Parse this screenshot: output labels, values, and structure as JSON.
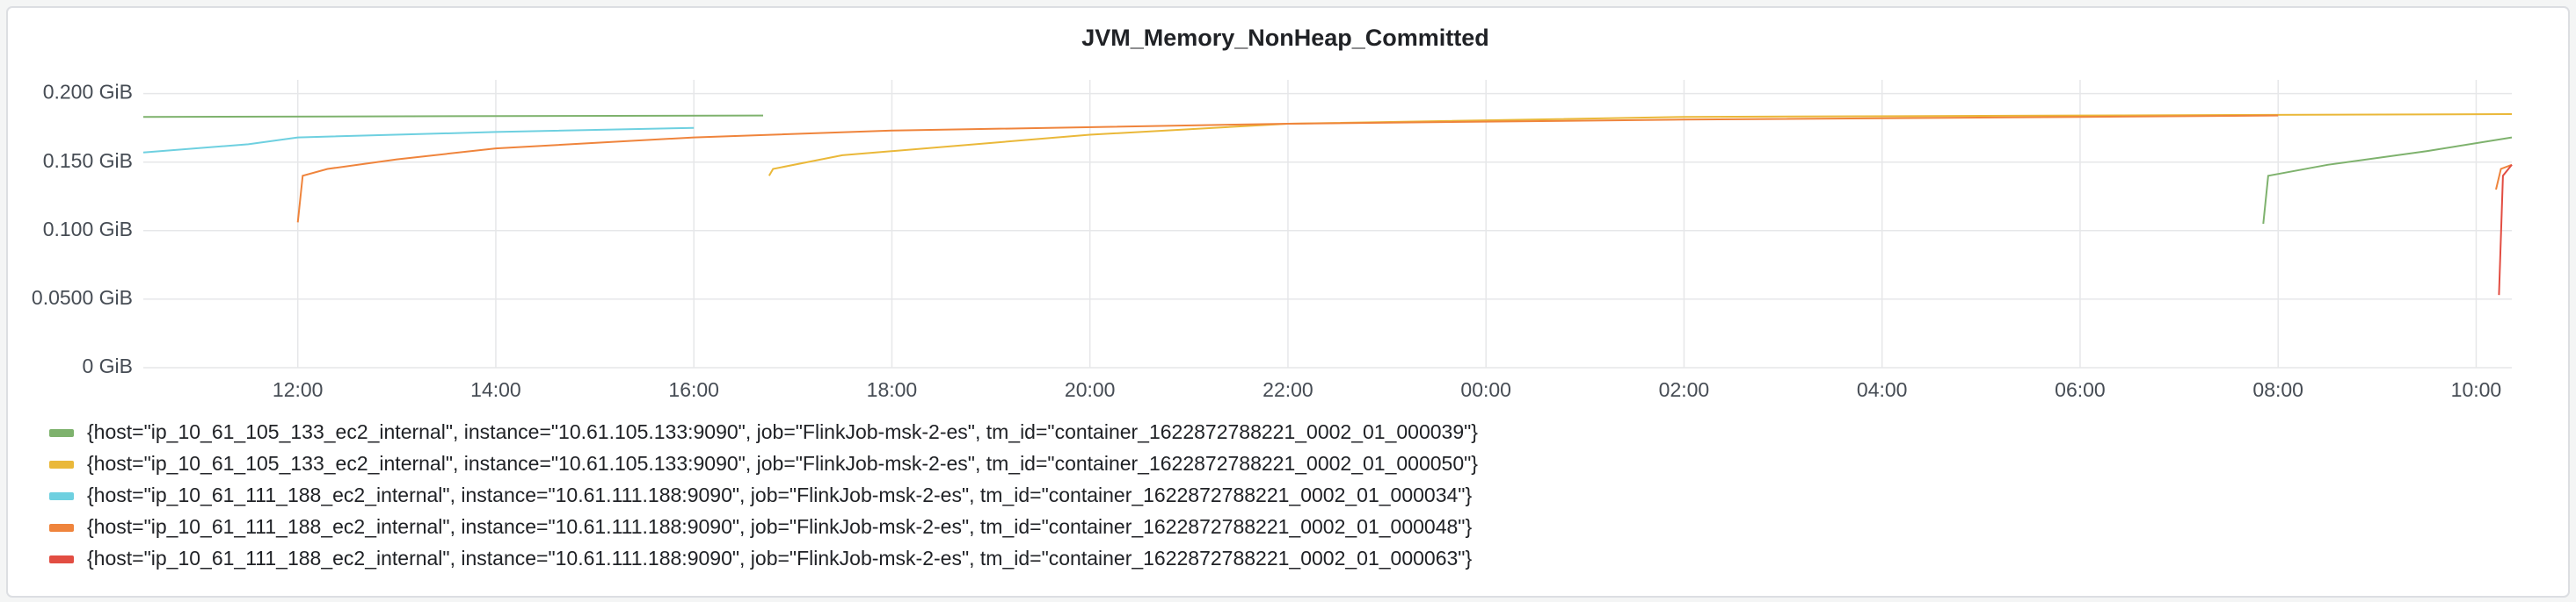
{
  "chart_data": {
    "type": "line",
    "title": "JVM_Memory_NonHeap_Committed",
    "xlim": [
      10.44,
      34.36
    ],
    "xticks": [
      {
        "value": 12,
        "label": "12:00"
      },
      {
        "value": 14,
        "label": "14:00"
      },
      {
        "value": 16,
        "label": "16:00"
      },
      {
        "value": 18,
        "label": "18:00"
      },
      {
        "value": 20,
        "label": "20:00"
      },
      {
        "value": 22,
        "label": "22:00"
      },
      {
        "value": 24,
        "label": "00:00"
      },
      {
        "value": 26,
        "label": "02:00"
      },
      {
        "value": 28,
        "label": "04:00"
      },
      {
        "value": 30,
        "label": "06:00"
      },
      {
        "value": 32,
        "label": "08:00"
      },
      {
        "value": 34,
        "label": "10:00"
      }
    ],
    "ylim": [
      0,
      0.21
    ],
    "yticks": [
      {
        "value": 0,
        "label": "0 GiB"
      },
      {
        "value": 0.05,
        "label": "0.0500 GiB"
      },
      {
        "value": 0.1,
        "label": "0.100 GiB"
      },
      {
        "value": 0.15,
        "label": "0.150 GiB"
      },
      {
        "value": 0.2,
        "label": "0.200 GiB"
      }
    ],
    "grid": true,
    "series": [
      {
        "name": "{host=\"ip_10_61_105_133_ec2_internal\", instance=\"10.61.105.133:9090\", job=\"FlinkJob-msk-2-es\", tm_id=\"container_1622872788221_0002_01_000039\"}",
        "color": "#7eb26d",
        "x": [
          10.44,
          16.7,
          16.8,
          31.85,
          31.9,
          32.5,
          33.5,
          34.36
        ],
        "values": [
          0.183,
          0.184,
          null,
          0.105,
          0.14,
          0.148,
          0.158,
          0.168
        ]
      },
      {
        "name": "{host=\"ip_10_61_105_133_ec2_internal\", instance=\"10.61.105.133:9090\", job=\"FlinkJob-msk-2-es\", tm_id=\"container_1622872788221_0002_01_000050\"}",
        "color": "#eab839",
        "x": [
          16.76,
          16.8,
          17.5,
          20,
          22,
          26,
          30,
          34.36
        ],
        "values": [
          0.14,
          0.145,
          0.155,
          0.17,
          0.178,
          0.183,
          0.184,
          0.185
        ]
      },
      {
        "name": "{host=\"ip_10_61_111_188_ec2_internal\", instance=\"10.61.111.188:9090\", job=\"FlinkJob-msk-2-es\", tm_id=\"container_1622872788221_0002_01_000034\"}",
        "color": "#6ed0e0",
        "x": [
          10.44,
          11.5,
          12,
          14,
          16
        ],
        "values": [
          0.157,
          0.163,
          0.168,
          0.172,
          0.175
        ]
      },
      {
        "name": "{host=\"ip_10_61_111_188_ec2_internal\", instance=\"10.61.111.188:9090\", job=\"FlinkJob-msk-2-es\", tm_id=\"container_1622872788221_0002_01_000048\"}",
        "color": "#ef843c",
        "x": [
          12,
          12.05,
          12.3,
          13,
          14,
          16,
          18,
          22,
          26,
          30,
          32,
          33,
          34.2,
          34.25,
          34.36
        ],
        "values": [
          0.106,
          0.14,
          0.145,
          0.152,
          0.16,
          0.168,
          0.173,
          0.178,
          0.181,
          0.183,
          0.184,
          null,
          0.13,
          0.145,
          0.148
        ]
      },
      {
        "name": "{host=\"ip_10_61_111_188_ec2_internal\", instance=\"10.61.111.188:9090\", job=\"FlinkJob-msk-2-es\", tm_id=\"container_1622872788221_0002_01_000063\"}",
        "color": "#e24d42",
        "x": [
          34.23,
          34.27,
          34.36
        ],
        "values": [
          0.053,
          0.14,
          0.148
        ]
      }
    ]
  }
}
